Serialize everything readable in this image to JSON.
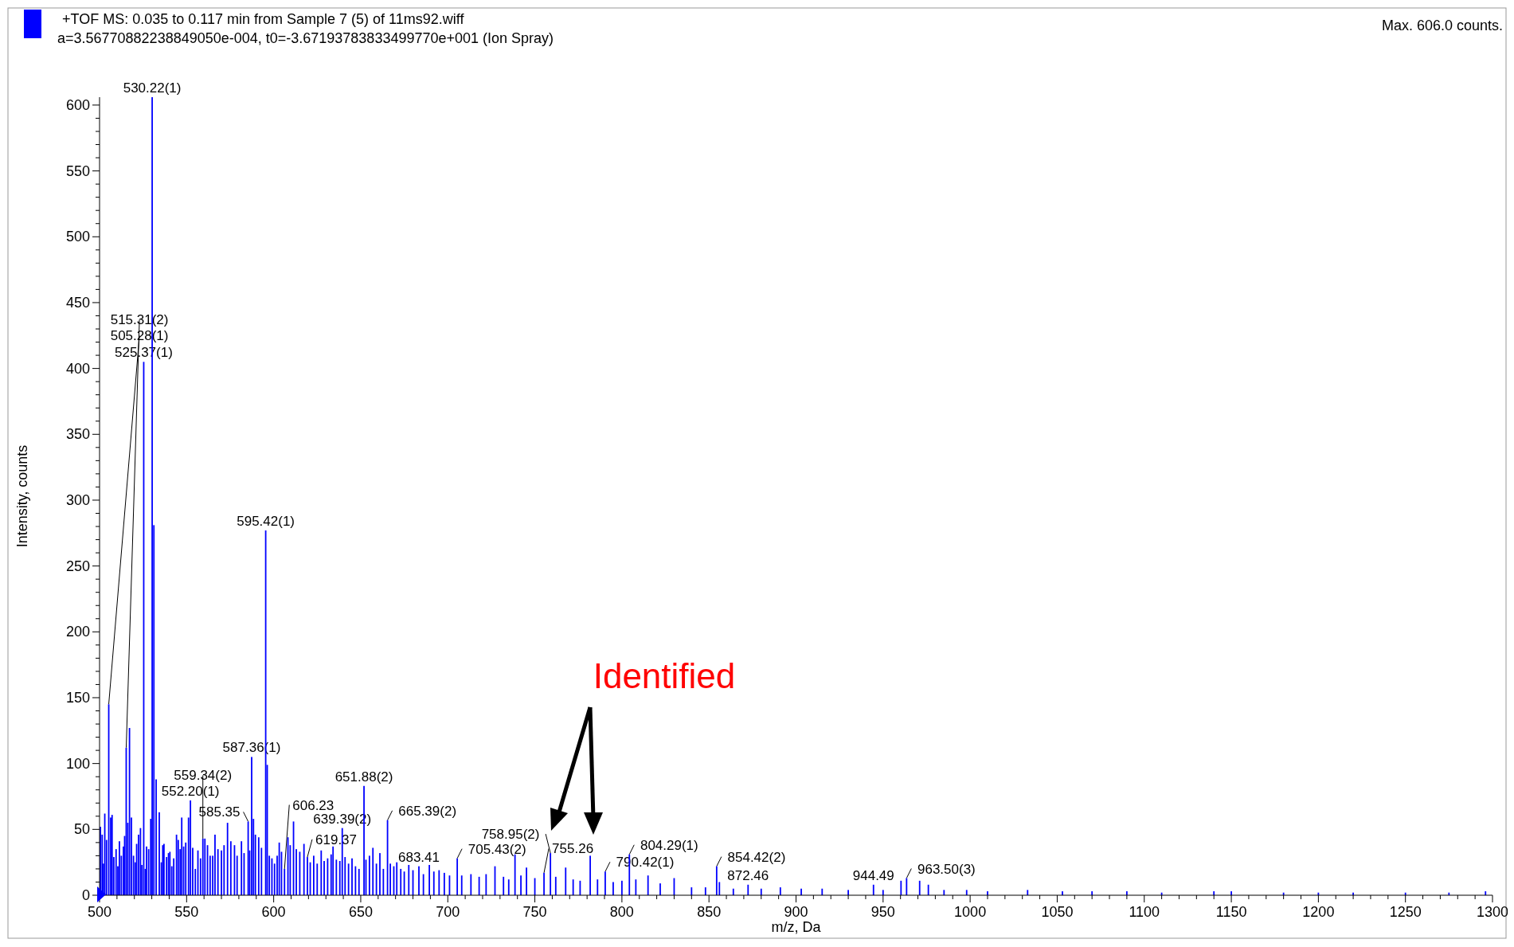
{
  "chart_data": {
    "type": "bar",
    "title": "+TOF MS: 0.035 to 0.117 min from Sample 7 (5) of 11ms92.wiff",
    "subtitle": "a=3.56770882238849050e-004, t0=-3.67193783833499770e+001 (Ion Spray)",
    "xlabel": "m/z, Da",
    "ylabel": "Intensity, counts",
    "xlim": [
      500,
      1300
    ],
    "ylim": [
      0,
      606
    ],
    "xticks": [
      500,
      {
        "value": 510,
        "label": null
      },
      {
        "value": 520,
        "label": null
      },
      {
        "value": 530,
        "label": null
      },
      {
        "value": 540,
        "label": null
      },
      550,
      {
        "value": 560,
        "label": null
      },
      {
        "value": 570,
        "label": null
      },
      {
        "value": 580,
        "label": null
      },
      {
        "value": 590,
        "label": null
      },
      600,
      {
        "value": 610,
        "label": null
      },
      {
        "value": 620,
        "label": null
      },
      {
        "value": 630,
        "label": null
      },
      {
        "value": 640,
        "label": null
      },
      650,
      {
        "value": 660,
        "label": null
      },
      {
        "value": 670,
        "label": null
      },
      {
        "value": 680,
        "label": null
      },
      {
        "value": 690,
        "label": null
      },
      700,
      {
        "value": 710,
        "label": null
      },
      {
        "value": 720,
        "label": null
      },
      {
        "value": 730,
        "label": null
      },
      {
        "value": 740,
        "label": null
      },
      750,
      {
        "value": 760,
        "label": null
      },
      {
        "value": 770,
        "label": null
      },
      {
        "value": 780,
        "label": null
      },
      {
        "value": 790,
        "label": null
      },
      800,
      {
        "value": 810,
        "label": null
      },
      {
        "value": 820,
        "label": null
      },
      {
        "value": 830,
        "label": null
      },
      {
        "value": 840,
        "label": null
      },
      850,
      {
        "value": 860,
        "label": null
      },
      {
        "value": 870,
        "label": null
      },
      {
        "value": 880,
        "label": null
      },
      {
        "value": 890,
        "label": null
      },
      900,
      {
        "value": 910,
        "label": null
      },
      {
        "value": 920,
        "label": null
      },
      {
        "value": 930,
        "label": null
      },
      {
        "value": 940,
        "label": null
      },
      950,
      {
        "value": 960,
        "label": null
      },
      {
        "value": 970,
        "label": null
      },
      {
        "value": 980,
        "label": null
      },
      {
        "value": 990,
        "label": null
      },
      1000,
      {
        "value": 1010,
        "label": null
      },
      {
        "value": 1020,
        "label": null
      },
      {
        "value": 1030,
        "label": null
      },
      {
        "value": 1040,
        "label": null
      },
      1050,
      {
        "value": 1060,
        "label": null
      },
      {
        "value": 1070,
        "label": null
      },
      {
        "value": 1080,
        "label": null
      },
      {
        "value": 1090,
        "label": null
      },
      1100,
      {
        "value": 1110,
        "label": null
      },
      {
        "value": 1120,
        "label": null
      },
      {
        "value": 1130,
        "label": null
      },
      {
        "value": 1140,
        "label": null
      },
      1150,
      {
        "value": 1160,
        "label": null
      },
      {
        "value": 1170,
        "label": null
      },
      {
        "value": 1180,
        "label": null
      },
      {
        "value": 1190,
        "label": null
      },
      1200,
      {
        "value": 1210,
        "label": null
      },
      {
        "value": 1220,
        "label": null
      },
      {
        "value": 1230,
        "label": null
      },
      {
        "value": 1240,
        "label": null
      },
      1250,
      {
        "value": 1260,
        "label": null
      },
      {
        "value": 1270,
        "label": null
      },
      {
        "value": 1280,
        "label": null
      },
      {
        "value": 1290,
        "label": null
      },
      1300
    ],
    "yticks": [
      0,
      {
        "value": 10,
        "label": null
      },
      {
        "value": 20,
        "label": null
      },
      {
        "value": 30,
        "label": null
      },
      {
        "value": 40,
        "label": null
      },
      50,
      {
        "value": 60,
        "label": null
      },
      {
        "value": 70,
        "label": null
      },
      {
        "value": 80,
        "label": null
      },
      {
        "value": 90,
        "label": null
      },
      100,
      {
        "value": 110,
        "label": null
      },
      {
        "value": 120,
        "label": null
      },
      {
        "value": 130,
        "label": null
      },
      {
        "value": 140,
        "label": null
      },
      150,
      {
        "value": 160,
        "label": null
      },
      {
        "value": 170,
        "label": null
      },
      {
        "value": 180,
        "label": null
      },
      {
        "value": 190,
        "label": null
      },
      200,
      {
        "value": 210,
        "label": null
      },
      {
        "value": 220,
        "label": null
      },
      {
        "value": 230,
        "label": null
      },
      {
        "value": 240,
        "label": null
      },
      250,
      {
        "value": 260,
        "label": null
      },
      {
        "value": 270,
        "label": null
      },
      {
        "value": 280,
        "label": null
      },
      {
        "value": 290,
        "label": null
      },
      300,
      {
        "value": 310,
        "label": null
      },
      {
        "value": 320,
        "label": null
      },
      {
        "value": 330,
        "label": null
      },
      {
        "value": 340,
        "label": null
      },
      350,
      {
        "value": 360,
        "label": null
      },
      {
        "value": 370,
        "label": null
      },
      {
        "value": 380,
        "label": null
      },
      {
        "value": 390,
        "label": null
      },
      400,
      {
        "value": 410,
        "label": null
      },
      {
        "value": 420,
        "label": null
      },
      {
        "value": 430,
        "label": null
      },
      {
        "value": 440,
        "label": null
      },
      450,
      {
        "value": 460,
        "label": null
      },
      {
        "value": 470,
        "label": null
      },
      {
        "value": 480,
        "label": null
      },
      {
        "value": 490,
        "label": null
      },
      500,
      {
        "value": 510,
        "label": null
      },
      {
        "value": 520,
        "label": null
      },
      {
        "value": 530,
        "label": null
      },
      {
        "value": 540,
        "label": null
      },
      550,
      {
        "value": 560,
        "label": null
      },
      {
        "value": 570,
        "label": null
      },
      {
        "value": 580,
        "label": null
      },
      {
        "value": 590,
        "label": null
      },
      600
    ],
    "x": [
      500.5,
      501.5,
      502.2,
      503.0,
      504,
      505.28,
      506.4,
      507.2,
      508.2,
      509.5,
      510.5,
      511.4,
      512.5,
      513.7,
      514.4,
      515.31,
      516.2,
      517.2,
      518.3,
      519.5,
      520.5,
      521.3,
      522.4,
      523.5,
      524.3,
      525.37,
      526.3,
      527,
      528.2,
      529.4,
      530.22,
      531.2,
      532.5,
      534.3,
      535.5,
      536.3,
      537,
      538.5,
      539.6,
      540.4,
      541.5,
      542.6,
      544.2,
      545.2,
      546.3,
      547.2,
      548.3,
      549.5,
      551.1,
      552.2,
      553.5,
      555,
      556.5,
      558,
      559.34,
      560.5,
      562,
      563.5,
      565,
      566.3,
      568,
      570,
      571.5,
      573.5,
      575.4,
      577.5,
      579,
      581.5,
      583,
      585.35,
      586.2,
      587.36,
      588.4,
      589.5,
      591.4,
      593,
      595.42,
      596.3,
      597.5,
      599,
      600.5,
      602,
      603.2,
      604.5,
      606.23,
      608.2,
      609.5,
      611.4,
      613,
      615,
      617.4,
      619.37,
      621,
      623,
      625,
      627.3,
      629,
      631,
      633,
      634.1,
      636,
      638,
      639.39,
      641,
      643,
      645,
      647,
      649,
      651.88,
      653,
      655,
      657,
      659,
      661,
      663,
      665.39,
      667,
      669,
      670.7,
      673,
      675,
      677.6,
      680,
      683.41,
      686,
      689.4,
      692,
      695,
      698,
      701,
      705.43,
      708,
      713.3,
      718,
      722,
      727.1,
      732,
      735,
      738.6,
      742,
      745.2,
      750,
      755.26,
      758.95,
      762,
      767.7,
      772,
      776,
      781.8,
      786,
      790.42,
      795,
      800,
      804.29,
      808,
      815,
      822,
      830,
      840,
      848,
      854.42,
      856,
      864,
      872.46,
      880,
      891,
      903,
      915,
      930,
      944.49,
      950,
      960.3,
      963.5,
      971,
      976,
      985,
      998,
      1010,
      1033,
      1053,
      1070,
      1090,
      1110,
      1140,
      1150,
      1180,
      1200,
      1220,
      1250,
      1275,
      1296
    ],
    "series": [
      {
        "color": "#0000ff",
        "values": [
          52,
          46,
          24,
          62,
          42,
          145,
          59,
          61,
          29,
          35,
          22,
          41,
          30,
          37,
          45,
          112,
          55,
          127,
          59,
          30,
          25,
          39,
          46,
          51,
          23,
          405,
          20,
          37,
          35,
          58,
          606,
          281,
          88,
          63,
          25,
          38,
          39,
          29,
          32,
          33,
          22,
          28,
          46,
          42,
          35,
          59,
          37,
          40,
          59,
          72,
          36,
          20,
          34,
          28,
          43,
          43,
          38,
          30,
          30,
          46,
          35,
          34,
          38,
          55,
          41,
          38,
          30,
          41,
          32,
          56,
          34,
          105,
          58,
          46,
          44,
          36,
          277,
          99,
          30,
          28,
          24,
          30,
          40,
          33,
          20,
          44,
          38,
          56,
          35,
          33,
          39,
          29,
          25,
          30,
          24,
          34,
          26,
          28,
          31,
          37,
          27,
          26,
          51,
          29,
          24,
          28,
          22,
          20,
          83,
          27,
          30,
          36,
          24,
          32,
          20,
          57,
          24,
          22,
          25,
          20,
          18,
          23,
          19,
          22,
          16,
          23,
          18,
          19,
          17,
          15,
          28,
          15,
          16,
          14,
          16,
          22,
          14,
          12,
          31,
          15,
          21,
          13,
          17,
          32,
          14,
          21,
          12,
          11,
          30,
          12,
          18,
          10,
          11,
          31,
          12,
          15,
          9,
          13,
          6,
          6,
          22,
          10,
          5,
          8,
          5,
          6,
          5,
          5,
          4,
          8,
          4,
          11,
          13,
          11,
          8,
          4,
          4,
          3,
          4,
          3,
          3,
          3,
          2,
          3,
          3,
          2,
          2,
          2,
          2,
          2,
          3
        ]
      }
    ],
    "annotations": [
      {
        "text": "530.22(1)",
        "x": 530.22,
        "y": 606
      },
      {
        "text": "525.37(1)",
        "x": 525.37,
        "y": 405
      },
      {
        "text": "595.42(1)",
        "x": 595.42,
        "y": 277
      },
      {
        "text": "505.28(1)",
        "x": 505.28,
        "y": 145
      },
      {
        "text": "515.31(2)",
        "x": 515.31,
        "y": 112
      },
      {
        "text": "587.36(1)",
        "x": 587.36,
        "y": 105
      },
      {
        "text": "552.20(1)",
        "x": 552.2,
        "y": 72
      },
      {
        "text": "651.88(2)",
        "x": 651.88,
        "y": 83
      },
      {
        "text": "585.35",
        "x": 585.35,
        "y": 56
      },
      {
        "text": "639.39(2)",
        "x": 639.39,
        "y": 51
      },
      {
        "text": "665.39(2)",
        "x": 665.39,
        "y": 57
      },
      {
        "text": "559.34(2)",
        "x": 559.34,
        "y": 43
      },
      {
        "text": "619.37",
        "x": 619.37,
        "y": 29
      },
      {
        "text": "606.23",
        "x": 606.23,
        "y": 20
      },
      {
        "text": "683.41",
        "x": 683.41,
        "y": 22
      },
      {
        "text": "705.43(2)",
        "x": 705.43,
        "y": 28
      },
      {
        "text": "758.95(2)",
        "x": 758.95,
        "y": 32
      },
      {
        "text": "804.29(1)",
        "x": 804.29,
        "y": 31
      },
      {
        "text": "755.26",
        "x": 755.26,
        "y": 17
      },
      {
        "text": "790.42(1)",
        "x": 790.42,
        "y": 18
      },
      {
        "text": "854.42(2)",
        "x": 854.42,
        "y": 22
      },
      {
        "text": "872.46",
        "x": 872.46,
        "y": 8
      },
      {
        "text": "944.49",
        "x": 944.49,
        "y": 8
      },
      {
        "text": "963.50(3)",
        "x": 963.5,
        "y": 13
      },
      "Identified",
      "Max. 606.0 counts."
    ]
  }
}
